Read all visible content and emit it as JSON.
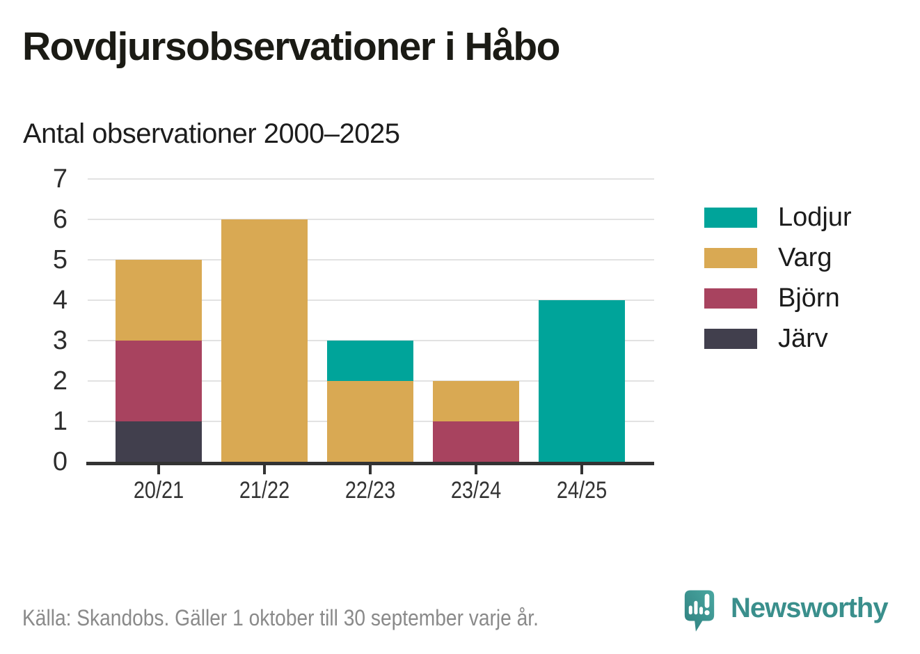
{
  "header": {
    "title": "Rovdjursobservationer i Håbo",
    "subtitle": "Antal observationer 2000–2025"
  },
  "chart_data": {
    "type": "bar",
    "stacked": true,
    "title": "Rovdjursobservationer i Håbo",
    "subtitle": "Antal observationer 2000–2025",
    "categories": [
      "20/21",
      "21/22",
      "22/23",
      "23/24",
      "24/25"
    ],
    "series": [
      {
        "name": "Lodjur",
        "color": "#00A49A",
        "values": [
          0,
          0,
          1,
          0,
          4
        ]
      },
      {
        "name": "Varg",
        "color": "#D9A953",
        "values": [
          2,
          6,
          2,
          1,
          0
        ]
      },
      {
        "name": "Björn",
        "color": "#A8435F",
        "values": [
          2,
          0,
          0,
          1,
          0
        ]
      },
      {
        "name": "Järv",
        "color": "#413F4D",
        "values": [
          1,
          0,
          0,
          0,
          0
        ]
      }
    ],
    "stack_order_bottom_to_top": [
      "Järv",
      "Björn",
      "Varg",
      "Lodjur"
    ],
    "totals": [
      5,
      6,
      3,
      2,
      4
    ],
    "xlabel": "",
    "ylabel": "",
    "ylim": [
      0,
      7
    ],
    "yticks": [
      0,
      1,
      2,
      3,
      4,
      5,
      6,
      7
    ],
    "grid": true,
    "legend_position": "right",
    "gridline_color": "#e2e2e2",
    "axis_color": "#333333"
  },
  "footer": {
    "source_text": "Källa: Skandobs. Gäller 1 oktober till 30 september varje år."
  },
  "branding": {
    "wordmark": "Newsworthy",
    "logo_icon": "newsworthy-speech-bubble-bar-chart-icon",
    "accent_color": "#3a8f8c"
  }
}
